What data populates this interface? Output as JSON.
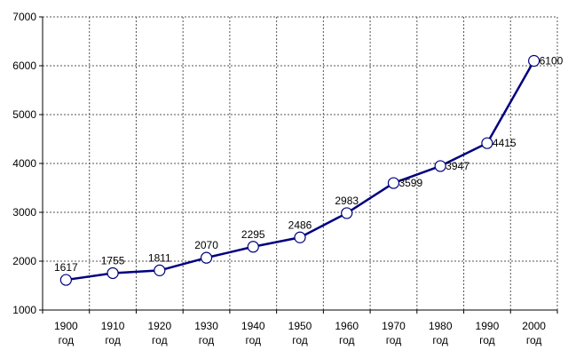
{
  "chart_data": {
    "type": "line",
    "x": [
      "1900",
      "1910",
      "1920",
      "1930",
      "1940",
      "1950",
      "1960",
      "1970",
      "1980",
      "1990",
      "2000"
    ],
    "x_unit_label": "год",
    "series": [
      {
        "values": [
          1617,
          1755,
          1811,
          2070,
          2295,
          2486,
          2983,
          3599,
          3947,
          4415,
          6100
        ]
      }
    ],
    "y_ticks": [
      1000,
      2000,
      3000,
      4000,
      5000,
      6000,
      7000
    ],
    "ylim": [
      1000,
      7000
    ],
    "grid": "dotted",
    "legend": "none",
    "data_labels": true,
    "colors": {
      "line": "#000080",
      "marker_fill": "#ffffff",
      "marker_stroke": "#000080",
      "grid": "#555555",
      "axis": "#000000"
    }
  }
}
